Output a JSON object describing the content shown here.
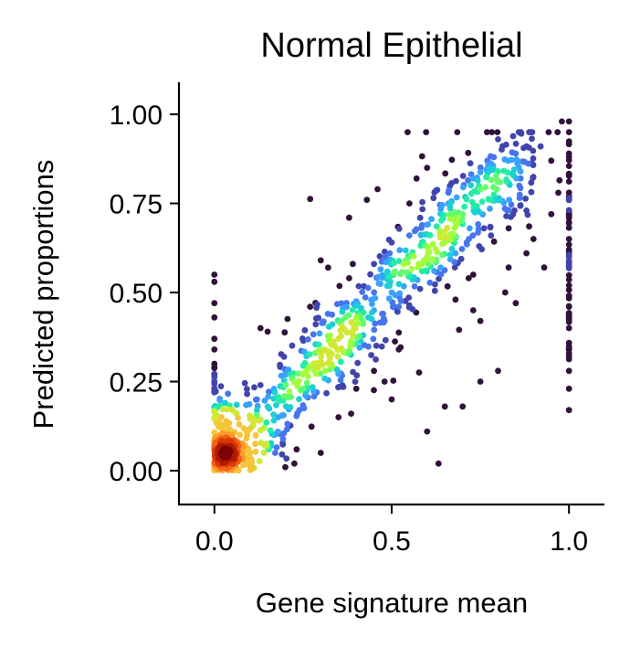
{
  "chart_data": {
    "type": "scatter",
    "title": "Normal Epithelial",
    "xlabel": "Gene signature mean",
    "ylabel": "Predicted proportions",
    "xlim": [
      -0.1,
      1.1
    ],
    "ylim": [
      -0.095,
      1.09
    ],
    "xticks": [
      0.0,
      0.5,
      1.0
    ],
    "xtick_labels": [
      "0.0",
      "0.5",
      "1.0"
    ],
    "yticks": [
      0.0,
      0.25,
      0.5,
      0.75,
      1.0
    ],
    "ytick_labels": [
      "0.00",
      "0.25",
      "0.50",
      "0.75",
      "1.00"
    ],
    "grid": false,
    "color_encoding": "point density (turbo colormap)",
    "colormap": [
      "#30123b",
      "#4145ab",
      "#4675ed",
      "#39a2fc",
      "#1bcfd4",
      "#24eca6",
      "#61fc6c",
      "#a4fc3b",
      "#d1e834",
      "#f3c63a",
      "#fe9b2d",
      "#f36315",
      "#d93806",
      "#b11901",
      "#7a0403"
    ],
    "clusters": [
      {
        "description": "dense core",
        "x_range": [
          0.0,
          0.1
        ],
        "y_range": [
          0.0,
          0.18
        ],
        "density": "very high"
      },
      {
        "description": "halo around core",
        "x_range": [
          0.0,
          0.2
        ],
        "y_range": [
          0.0,
          0.25
        ],
        "density": "high"
      },
      {
        "description": "vertical strip at x=0",
        "x": 0.0,
        "y_range": [
          0.0,
          0.55
        ],
        "density": "medium"
      },
      {
        "description": "main diagonal trend",
        "x_range": [
          0.2,
          0.9
        ],
        "y_approx": "y ≈ 0.05 + 0.95x",
        "density": "medium"
      },
      {
        "description": "vertical strip at x=1",
        "x": 1.0,
        "y_range": [
          0.17,
          0.98
        ],
        "density": "low"
      }
    ],
    "points": [
      [
        0.0,
        0.55
      ],
      [
        0.0,
        0.53
      ],
      [
        0.0,
        0.47
      ],
      [
        0.0,
        0.43
      ],
      [
        0.0,
        0.37
      ],
      [
        0.0,
        0.34
      ],
      [
        0.0,
        0.3
      ],
      [
        0.0,
        0.27
      ],
      [
        0.0,
        0.25
      ],
      [
        0.0,
        0.22
      ],
      [
        1.0,
        0.98
      ],
      [
        1.0,
        0.95
      ],
      [
        1.0,
        0.89
      ],
      [
        1.0,
        0.83
      ],
      [
        1.0,
        0.76
      ],
      [
        1.0,
        0.71
      ],
      [
        1.0,
        0.65
      ],
      [
        1.0,
        0.58
      ],
      [
        1.0,
        0.52
      ],
      [
        1.0,
        0.46
      ],
      [
        1.0,
        0.4
      ],
      [
        1.0,
        0.34
      ],
      [
        1.0,
        0.28
      ],
      [
        1.0,
        0.23
      ],
      [
        1.0,
        0.17
      ],
      [
        0.98,
        0.98
      ],
      [
        0.95,
        0.87
      ],
      [
        0.92,
        0.91
      ],
      [
        0.88,
        0.91
      ],
      [
        0.85,
        0.89
      ],
      [
        0.8,
        0.84
      ],
      [
        0.75,
        0.79
      ],
      [
        0.78,
        0.76
      ],
      [
        0.7,
        0.72
      ],
      [
        0.72,
        0.68
      ],
      [
        0.65,
        0.64
      ],
      [
        0.68,
        0.61
      ],
      [
        0.6,
        0.6
      ],
      [
        0.62,
        0.56
      ],
      [
        0.55,
        0.55
      ],
      [
        0.58,
        0.51
      ],
      [
        0.5,
        0.5
      ],
      [
        0.52,
        0.46
      ],
      [
        0.45,
        0.45
      ],
      [
        0.48,
        0.42
      ],
      [
        0.4,
        0.41
      ],
      [
        0.42,
        0.38
      ],
      [
        0.35,
        0.37
      ],
      [
        0.38,
        0.33
      ],
      [
        0.3,
        0.34
      ],
      [
        0.33,
        0.3
      ],
      [
        0.28,
        0.3
      ],
      [
        0.25,
        0.27
      ],
      [
        0.22,
        0.26
      ],
      [
        0.2,
        0.24
      ],
      [
        0.55,
        0.75
      ],
      [
        0.6,
        0.69
      ],
      [
        0.62,
        0.59
      ],
      [
        0.68,
        0.48
      ],
      [
        0.73,
        0.55
      ],
      [
        0.75,
        0.42
      ],
      [
        0.82,
        0.5
      ],
      [
        0.85,
        0.47
      ],
      [
        0.8,
        0.28
      ],
      [
        0.75,
        0.25
      ],
      [
        0.7,
        0.18
      ],
      [
        0.6,
        0.11
      ],
      [
        0.5,
        0.2
      ],
      [
        0.45,
        0.28
      ],
      [
        0.4,
        0.23
      ],
      [
        0.35,
        0.15
      ],
      [
        0.3,
        0.05
      ],
      [
        0.2,
        0.01
      ],
      [
        0.15,
        0.39
      ],
      [
        0.13,
        0.4
      ],
      [
        0.3,
        0.59
      ],
      [
        0.38,
        0.71
      ],
      [
        0.43,
        0.76
      ],
      [
        0.5,
        0.64
      ],
      [
        0.57,
        0.82
      ],
      [
        0.6,
        0.85
      ],
      [
        0.66,
        0.78
      ],
      [
        0.83,
        0.68
      ],
      [
        0.88,
        0.61
      ],
      [
        0.9,
        0.65
      ],
      [
        0.93,
        0.57
      ],
      [
        0.95,
        0.72
      ],
      [
        0.97,
        0.78
      ],
      [
        0.88,
        0.73
      ],
      [
        0.86,
        0.8
      ],
      [
        0.77,
        0.87
      ],
      [
        0.8,
        0.93
      ],
      [
        0.73,
        0.82
      ],
      [
        0.46,
        0.79
      ],
      [
        0.38,
        0.54
      ],
      [
        0.27,
        0.46
      ],
      [
        0.24,
        0.17
      ],
      [
        0.32,
        0.44
      ],
      [
        0.48,
        0.25
      ],
      [
        0.52,
        0.34
      ],
      [
        0.65,
        0.18
      ],
      [
        0.73,
        0.45
      ],
      [
        0.83,
        0.57
      ],
      [
        0.55,
        0.66
      ],
      [
        0.45,
        0.58
      ],
      [
        0.05,
        0.1
      ],
      [
        0.03,
        0.06
      ],
      [
        0.07,
        0.13
      ],
      [
        0.09,
        0.09
      ],
      [
        0.02,
        0.15
      ],
      [
        0.1,
        0.05
      ],
      [
        0.06,
        0.02
      ],
      [
        0.11,
        0.14
      ],
      [
        0.04,
        0.11
      ],
      [
        0.08,
        0.04
      ],
      [
        0.12,
        0.2
      ],
      [
        0.15,
        0.18
      ],
      [
        0.14,
        0.12
      ],
      [
        0.17,
        0.22
      ],
      [
        0.03,
        0.19
      ],
      [
        0.18,
        0.15
      ],
      [
        0.13,
        0.24
      ],
      [
        0.16,
        0.07
      ],
      [
        0.19,
        0.2
      ],
      [
        0.01,
        0.08
      ]
    ]
  }
}
